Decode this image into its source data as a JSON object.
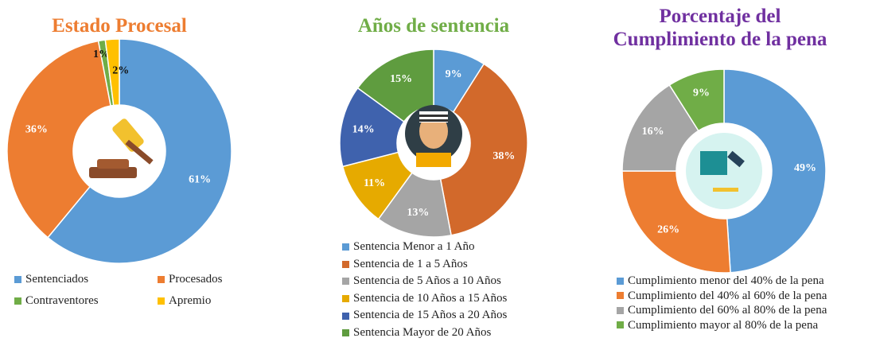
{
  "chart_data": [
    {
      "type": "pie",
      "title": "Estado Procesal",
      "title_color": "#ed7d31",
      "categories": [
        "Sentenciados",
        "Procesados",
        "Contraventores",
        "Apremio"
      ],
      "values": [
        61,
        36,
        1,
        2
      ],
      "value_labels": [
        "61%",
        "36%",
        "1%",
        "2%"
      ],
      "colors": [
        "#5b9bd5",
        "#ed7d31",
        "#70ad47",
        "#ffc000"
      ]
    },
    {
      "type": "pie",
      "title": "Años de sentencia",
      "title_color": "#70ad47",
      "categories": [
        "Sentencia Menor a 1 Año",
        "Sentencia de 1 a 5 Años",
        "Sentencia de 5 Años a 10 Años",
        "Sentencia de 10 Años a 15 Años",
        "Sentencia de 15 Años a 20 Años",
        "Sentencia Mayor de 20 Años"
      ],
      "values": [
        9,
        38,
        13,
        11,
        14,
        15
      ],
      "value_labels": [
        "9%",
        "38%",
        "13%",
        "11%",
        "14%",
        "15%"
      ],
      "colors": [
        "#5b9bd5",
        "#d2692b",
        "#a5a5a5",
        "#e6aa00",
        "#3f62ad",
        "#5f9c3f"
      ]
    },
    {
      "type": "pie",
      "title": "Porcentaje del Cumplimiento de la pena",
      "title_color": "#7030a0",
      "categories": [
        "Cumplimiento menor del 40% de la pena",
        "Cumplimiento del 40% al 60% de la pena",
        "Cumplimiento del 60% al 80% de la pena",
        "Cumplimiento mayor al 80% de la pena"
      ],
      "values": [
        49,
        26,
        16,
        9
      ],
      "value_labels": [
        "49%",
        "26%",
        "16%",
        "9%"
      ],
      "colors": [
        "#5b9bd5",
        "#ed7d31",
        "#a5a5a5",
        "#70ad47"
      ]
    }
  ]
}
